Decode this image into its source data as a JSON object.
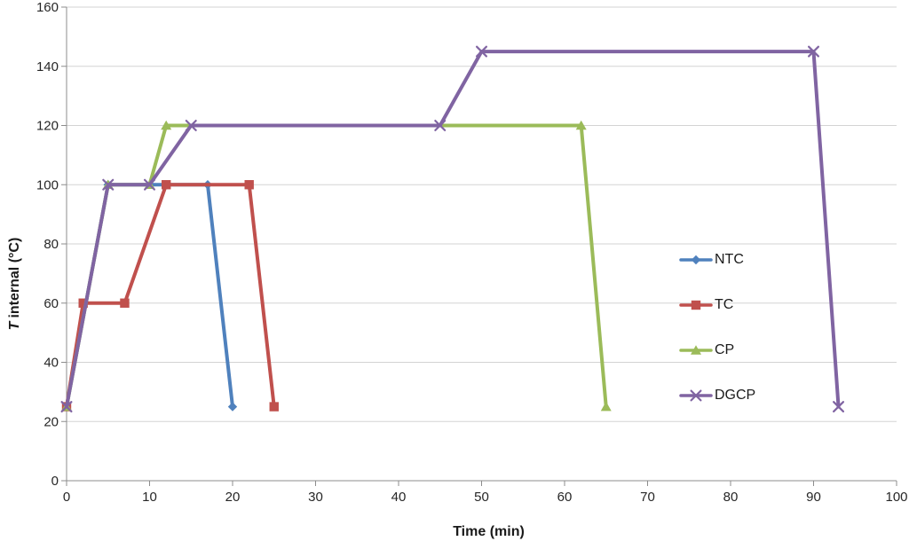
{
  "chart_data": {
    "type": "line",
    "xlabel": "Time (min)",
    "ylabel_italic": "T",
    "ylabel_rest": "internal (°C)",
    "xlim": [
      0,
      100
    ],
    "ylim": [
      0,
      160
    ],
    "x_ticks": [
      0,
      10,
      20,
      30,
      40,
      50,
      60,
      70,
      80,
      90,
      100
    ],
    "y_ticks": [
      0,
      20,
      40,
      60,
      80,
      100,
      120,
      140,
      160
    ],
    "grid": "horizontal",
    "legend_position": "middle-right",
    "series": [
      {
        "name": "NTC",
        "color": "#4F81BD",
        "marker": "diamond",
        "points": [
          [
            0,
            25
          ],
          [
            5,
            100
          ],
          [
            17,
            100
          ],
          [
            20,
            25
          ]
        ]
      },
      {
        "name": "TC",
        "color": "#C0504D",
        "marker": "square",
        "points": [
          [
            0,
            25
          ],
          [
            2,
            60
          ],
          [
            7,
            60
          ],
          [
            12,
            100
          ],
          [
            22,
            100
          ],
          [
            25,
            25
          ]
        ]
      },
      {
        "name": "CP",
        "color": "#9BBB59",
        "marker": "triangle",
        "points": [
          [
            0,
            25
          ],
          [
            5,
            100
          ],
          [
            10,
            100
          ],
          [
            12,
            120
          ],
          [
            62,
            120
          ],
          [
            65,
            25
          ]
        ]
      },
      {
        "name": "DGCP",
        "color": "#8064A2",
        "marker": "x",
        "points": [
          [
            0,
            25
          ],
          [
            5,
            100
          ],
          [
            10,
            100
          ],
          [
            15,
            120
          ],
          [
            45,
            120
          ],
          [
            50,
            145
          ],
          [
            90,
            145
          ],
          [
            93,
            25
          ]
        ]
      }
    ],
    "colors": {
      "gridline": "#D3D3D3",
      "axis": "#8C8C8C",
      "tick_text": "#262626"
    }
  }
}
